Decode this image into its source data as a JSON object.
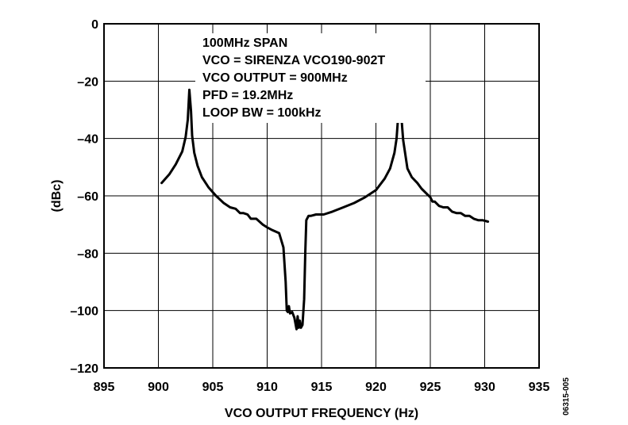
{
  "chart_data": {
    "type": "line",
    "title": "",
    "xlabel": "VCO OUTPUT FREQUENCY (Hz)",
    "ylabel": "(dBc)",
    "xlim": [
      895,
      935
    ],
    "ylim": [
      -120,
      0
    ],
    "xticks": [
      895,
      900,
      905,
      910,
      915,
      920,
      925,
      930,
      935
    ],
    "yticks": [
      0,
      -20,
      -40,
      -60,
      -80,
      -100,
      -120
    ],
    "ytick_labels": [
      "0",
      "–20",
      "–40",
      "–60",
      "–80",
      "–100",
      "–120"
    ],
    "grid": true,
    "legend": "none",
    "annotations": [
      "100MHz SPAN",
      "VCO = SIRENZA VCO190-902T",
      "VCO OUTPUT = 900MHz",
      "PFD = 19.2MHz",
      "LOOP BW = 100kHz"
    ],
    "figure_id": "06315-005",
    "series": [
      {
        "color": "#000000",
        "x": [
          900.3,
          901.0,
          901.6,
          902.2,
          902.5,
          902.7,
          902.85,
          903.0,
          903.1,
          903.3,
          903.6,
          904.0,
          904.6,
          905.3,
          906.0,
          906.6,
          907.1,
          907.5,
          907.8,
          908.2,
          908.5,
          909.0,
          909.6,
          910.0,
          910.5,
          911.1,
          911.5,
          911.7,
          911.8,
          911.9,
          912.0,
          912.1,
          912.3,
          912.5,
          912.7,
          912.8,
          912.9,
          913.0,
          913.1,
          913.25,
          913.4,
          913.5,
          913.6,
          913.8,
          914.0,
          914.5,
          915.2,
          916.0,
          917.0,
          918.0,
          919.0,
          920.0,
          920.8,
          921.3,
          921.7,
          921.9,
          922.05,
          922.2,
          922.35,
          922.5,
          922.7,
          922.9,
          923.3,
          923.8,
          924.2,
          924.6,
          925.0,
          925.2,
          925.4,
          925.8,
          926.2,
          926.6,
          927.0,
          927.4,
          927.8,
          928.2,
          928.6,
          929.0,
          929.4,
          929.8,
          930.3
        ],
        "y": [
          -55.5,
          -52.5,
          -49.0,
          -44.5,
          -39.5,
          -33.5,
          -23.0,
          -30.5,
          -39.0,
          -45.0,
          -49.5,
          -53.5,
          -57.0,
          -60.0,
          -62.5,
          -64.0,
          -64.5,
          -66.0,
          -66.0,
          -66.5,
          -68.0,
          -68.0,
          -70.0,
          -71.0,
          -72.0,
          -73.0,
          -78.0,
          -90.0,
          -100.0,
          -100.5,
          -98.5,
          -101.0,
          -100.5,
          -102.5,
          -106.5,
          -102.0,
          -106.0,
          -103.5,
          -106.0,
          -105.0,
          -96.0,
          -80.0,
          -68.5,
          -67.0,
          -67.0,
          -66.5,
          -66.5,
          -65.5,
          -64.0,
          -62.5,
          -60.5,
          -58.0,
          -54.0,
          -50.5,
          -45.0,
          -40.0,
          -32.0,
          -24.0,
          -33.0,
          -40.5,
          -45.5,
          -50.5,
          -53.5,
          -55.5,
          -57.5,
          -59.0,
          -60.5,
          -62.0,
          -62.0,
          -63.5,
          -64.0,
          -64.0,
          -65.5,
          -66.0,
          -66.0,
          -67.0,
          -67.0,
          -68.0,
          -68.5,
          -68.5,
          -69.0
        ]
      }
    ]
  }
}
